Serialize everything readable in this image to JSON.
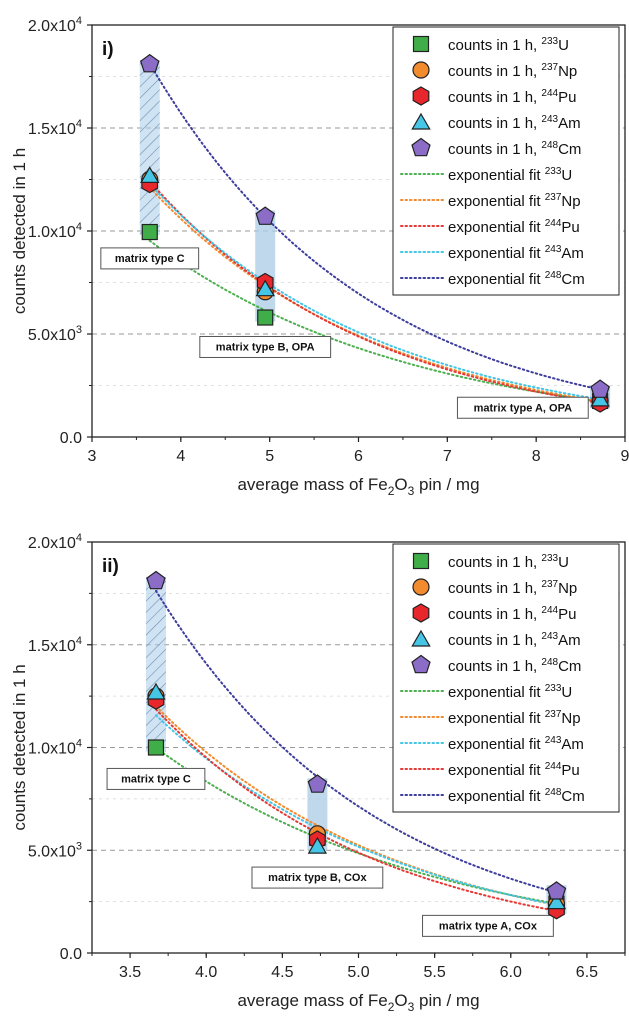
{
  "colors": {
    "U233": "#3fae49",
    "Np237": "#f28a2e",
    "Pu244": "#e8272d",
    "Am243": "#45c6e6",
    "Cm248": "#8b6dc8",
    "U233_fit": "#4caf50",
    "Np237_fit": "#f28a2e",
    "Pu244_fit": "#e53935",
    "Am243_fit": "#42c6e6",
    "Cm248_fit": "#3d3d9e",
    "band": "#a9cbe6"
  },
  "chart_data": [
    {
      "type": "scatter",
      "panel_label": "i)",
      "xlabel": "average mass of Fe",
      "xlabel_sub": "2",
      "xlabel_mid": "O",
      "xlabel_sub2": "3",
      "xlabel_end": " pin / mg",
      "ylabel": "counts detected in 1 h",
      "xlim": [
        3,
        9
      ],
      "ylim": [
        0,
        20000
      ],
      "xticks": [
        "3",
        "4",
        "5",
        "6",
        "7",
        "8",
        "9"
      ],
      "yticks": [
        "0.0",
        "5.0x10",
        "1.0x10",
        "1.5x10",
        "2.0x10"
      ],
      "ytick_exp": [
        "",
        "3",
        "4",
        "4",
        "4"
      ],
      "x": [
        3.65,
        4.95,
        8.72
      ],
      "series": [
        {
          "name": "counts in 1 h, ",
          "iso": "233",
          "el": "U",
          "marker": "square",
          "color_key": "U233",
          "values": [
            9950,
            5800,
            1750
          ]
        },
        {
          "name": "counts in 1 h, ",
          "iso": "237",
          "el": "Np",
          "marker": "circle",
          "color_key": "Np237",
          "values": [
            12500,
            7050,
            1750
          ]
        },
        {
          "name": "counts in 1 h, ",
          "iso": "244",
          "el": "Pu",
          "marker": "hexagon",
          "color_key": "Pu244",
          "values": [
            12300,
            7500,
            1650
          ]
        },
        {
          "name": "counts in 1 h, ",
          "iso": "243",
          "el": "Am",
          "marker": "triangle",
          "color_key": "Am243",
          "values": [
            12700,
            7200,
            1850
          ]
        },
        {
          "name": "counts in 1 h, ",
          "iso": "248",
          "el": "Cm",
          "marker": "pentagon",
          "color_key": "Cm248",
          "values": [
            18100,
            10700,
            2300
          ]
        }
      ],
      "fits": [
        {
          "name": "exponential fit ",
          "iso": "233",
          "el": "U",
          "color_key": "U233_fit",
          "values": [
            9950,
            5800,
            1750
          ]
        },
        {
          "name": "exponential fit ",
          "iso": "237",
          "el": "Np",
          "color_key": "Np237_fit",
          "values": [
            12500,
            7050,
            1750
          ]
        },
        {
          "name": "exponential fit ",
          "iso": "244",
          "el": "Pu",
          "color_key": "Pu244_fit",
          "values": [
            12300,
            7500,
            1650
          ]
        },
        {
          "name": "exponential fit ",
          "iso": "243",
          "el": "Am",
          "color_key": "Am243_fit",
          "values": [
            12700,
            7200,
            1850
          ]
        },
        {
          "name": "exponential fit ",
          "iso": "248",
          "el": "Cm",
          "color_key": "Cm248_fit",
          "values": [
            18100,
            10700,
            2300
          ]
        }
      ],
      "bands": [
        {
          "x": 3.65,
          "lo": 9800,
          "hi": 18300,
          "hatched": true
        },
        {
          "x": 4.95,
          "lo": 5600,
          "hi": 11000,
          "hatched": false
        },
        {
          "x": 8.72,
          "lo": 1400,
          "hi": 2500,
          "hatched": false
        }
      ],
      "annotations": [
        {
          "text": "matrix type C",
          "x": 3.65,
          "y": 8500
        },
        {
          "text": "matrix type B, OPA",
          "x": 4.95,
          "y": 4200
        },
        {
          "text": "matrix type A, OPA",
          "x": 7.85,
          "y": 1250
        }
      ],
      "grid": true,
      "legend": "top-right"
    },
    {
      "type": "scatter",
      "panel_label": "ii)",
      "xlabel": "average mass of Fe",
      "xlabel_sub": "2",
      "xlabel_mid": "O",
      "xlabel_sub2": "3",
      "xlabel_end": " pin / mg",
      "ylabel": "counts detected in 1 h",
      "xlim": [
        3.25,
        6.75
      ],
      "ylim": [
        0,
        20000
      ],
      "xticks": [
        "3.5",
        "4.0",
        "4.5",
        "5.0",
        "5.5",
        "6.0",
        "6.5"
      ],
      "yticks": [
        "0.0",
        "5.0x10",
        "1.0x10",
        "1.5x10",
        "2.0x10"
      ],
      "ytick_exp": [
        "",
        "3",
        "4",
        "4",
        "4"
      ],
      "x": [
        3.67,
        4.73,
        6.3
      ],
      "series": [
        {
          "name": "counts in 1 h, ",
          "iso": "233",
          "el": "U",
          "marker": "square",
          "color_key": "U233",
          "values": [
            10000,
            5600,
            2400
          ]
        },
        {
          "name": "counts in 1 h, ",
          "iso": "237",
          "el": "Np",
          "marker": "circle",
          "color_key": "Np237",
          "values": [
            12500,
            5800,
            2400
          ]
        },
        {
          "name": "counts in 1 h, ",
          "iso": "244",
          "el": "Pu",
          "marker": "hexagon",
          "color_key": "Pu244",
          "values": [
            12300,
            5500,
            2100
          ]
        },
        {
          "name": "counts in 1 h, ",
          "iso": "243",
          "el": "Am",
          "marker": "triangle",
          "color_key": "Am243",
          "values": [
            12700,
            5200,
            2500
          ]
        },
        {
          "name": "counts in 1 h, ",
          "iso": "248",
          "el": "Cm",
          "marker": "pentagon",
          "color_key": "Cm248",
          "values": [
            18100,
            8200,
            3000
          ]
        }
      ],
      "fits": [
        {
          "name": "exponential fit ",
          "iso": "233",
          "el": "U",
          "color_key": "U233_fit",
          "values": [
            10000,
            5600,
            2400
          ]
        },
        {
          "name": "exponential fit ",
          "iso": "237",
          "el": "Np",
          "color_key": "Np237_fit",
          "values": [
            12500,
            5800,
            2400
          ]
        },
        {
          "name": "exponential fit ",
          "iso": "243",
          "el": "Am",
          "color_key": "Am243_fit",
          "values": [
            12700,
            5200,
            2500
          ]
        },
        {
          "name": "exponential fit ",
          "iso": "244",
          "el": "Pu",
          "color_key": "Pu244_fit",
          "values": [
            12300,
            5500,
            2100
          ]
        },
        {
          "name": "exponential fit ",
          "iso": "248",
          "el": "Cm",
          "color_key": "Cm248_fit",
          "values": [
            18100,
            8200,
            3000
          ]
        }
      ],
      "bands": [
        {
          "x": 3.67,
          "lo": 9800,
          "hi": 18300,
          "hatched": true
        },
        {
          "x": 4.73,
          "lo": 5000,
          "hi": 8500,
          "hatched": false
        },
        {
          "x": 6.3,
          "lo": 1900,
          "hi": 3300,
          "hatched": false
        }
      ],
      "annotations": [
        {
          "text": "matrix type C",
          "x": 3.67,
          "y": 8300
        },
        {
          "text": "matrix type B, COx",
          "x": 4.73,
          "y": 3500
        },
        {
          "text": "matrix type A, COx",
          "x": 5.85,
          "y": 1150
        }
      ],
      "grid": true,
      "legend": "top-right"
    }
  ]
}
